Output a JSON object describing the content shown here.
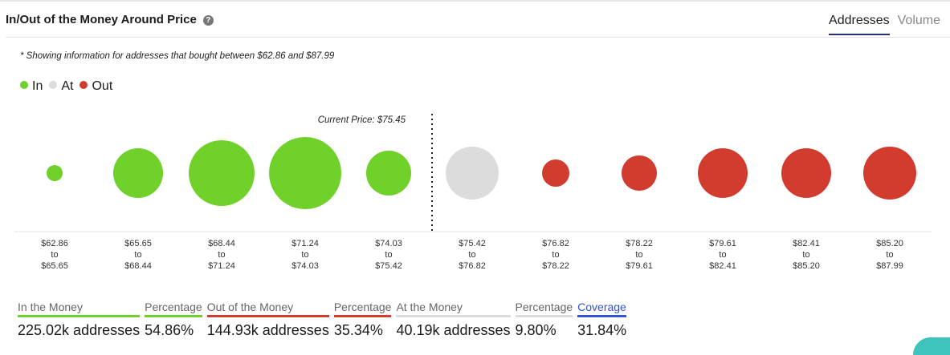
{
  "header": {
    "title": "In/Out of the Money Around Price",
    "help_icon": "question-circle-icon",
    "tabs": [
      {
        "label": "Addresses",
        "active": true
      },
      {
        "label": "Volume",
        "active": false
      }
    ]
  },
  "note": "* Showing information for addresses that bought between $62.86 and $87.99",
  "legend": [
    {
      "label": "In",
      "color": "#6fd12a"
    },
    {
      "label": "At",
      "color": "#dcdcdc"
    },
    {
      "label": "Out",
      "color": "#d23c2f"
    }
  ],
  "chart_data": {
    "type": "scatter",
    "subtype": "bubble",
    "annotation": "Current Price: $75.45",
    "categories": [
      {
        "from": "$62.86",
        "to": "$65.65",
        "status": "In",
        "relative_size": 10
      },
      {
        "from": "$65.65",
        "to": "$68.44",
        "status": "In",
        "relative_size": 31
      },
      {
        "from": "$68.44",
        "to": "$71.24",
        "status": "In",
        "relative_size": 41
      },
      {
        "from": "$71.24",
        "to": "$74.03",
        "status": "In",
        "relative_size": 45
      },
      {
        "from": "$74.03",
        "to": "$75.42",
        "status": "In",
        "relative_size": 28
      },
      {
        "from": "$75.42",
        "to": "$76.82",
        "status": "At",
        "relative_size": 33
      },
      {
        "from": "$76.82",
        "to": "$78.22",
        "status": "Out",
        "relative_size": 17
      },
      {
        "from": "$78.22",
        "to": "$79.61",
        "status": "Out",
        "relative_size": 22
      },
      {
        "from": "$79.61",
        "to": "$82.41",
        "status": "Out",
        "relative_size": 31
      },
      {
        "from": "$82.41",
        "to": "$85.20",
        "status": "Out",
        "relative_size": 31
      },
      {
        "from": "$85.20",
        "to": "$87.99",
        "status": "Out",
        "relative_size": 33
      }
    ],
    "to_word": "to"
  },
  "stats": [
    {
      "label": "In the Money",
      "value": "225.02k addresses",
      "color": "#6fd12a"
    },
    {
      "label": "Percentage",
      "value": "54.86%",
      "color": "#6fd12a"
    },
    {
      "label": "Out of the Money",
      "value": "144.93k addresses",
      "color": "#d23c2f"
    },
    {
      "label": "Percentage",
      "value": "35.34%",
      "color": "#d23c2f"
    },
    {
      "label": "At the Money",
      "value": "40.19k addresses",
      "color": "#dcdcdc"
    },
    {
      "label": "Percentage",
      "value": "9.80%",
      "color": "#dcdcdc"
    },
    {
      "label": "Coverage",
      "value": "31.84%",
      "color": "#2f54d8"
    }
  ]
}
